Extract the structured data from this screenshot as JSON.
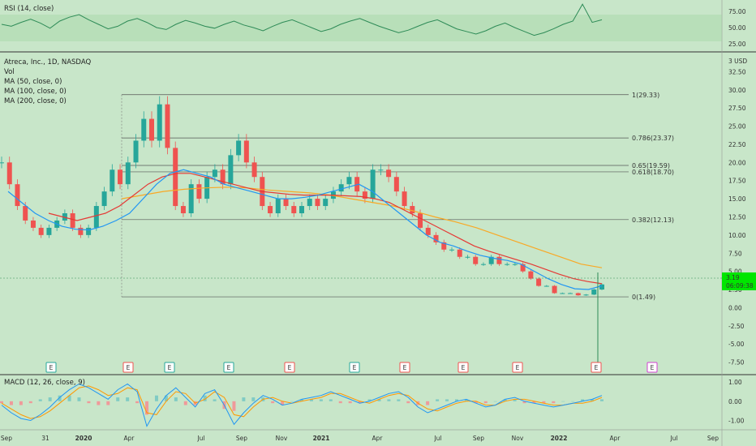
{
  "header": {
    "rsi_label": "RSI (14, close)",
    "main_title": "Atreca, Inc., 1D, NASDAQ",
    "indicators": [
      "Vol",
      "MA (50, close, 0)",
      "MA (100, close, 0)",
      "MA (200, close, 0)"
    ],
    "macd_label": "MACD (12, 26, close, 9)"
  },
  "colors": {
    "background": "#c8e6c9",
    "candle_up": "#26a69a",
    "candle_down": "#ef5350",
    "ma50": "#2196f3",
    "ma100": "#e53935",
    "ma200": "#f9a825",
    "rsi": "#2e8b57",
    "macd": "#2196f3",
    "signal": "#ff9800",
    "price_badge": "#00e600"
  },
  "price_badge": {
    "price": "3.19",
    "countdown": "06:09:38"
  },
  "chart_data": [
    {
      "type": "line",
      "name": "rsi",
      "title": "RSI (14, close)",
      "y_ticks": [
        "75.00",
        "50.00",
        "25.00"
      ],
      "ylim": [
        15,
        90
      ],
      "band": [
        30,
        70
      ],
      "values": [
        55,
        52,
        58,
        63,
        57,
        49,
        60,
        66,
        70,
        62,
        55,
        48,
        52,
        60,
        64,
        58,
        50,
        47,
        55,
        61,
        57,
        52,
        49,
        55,
        60,
        54,
        50,
        45,
        52,
        58,
        62,
        56,
        50,
        44,
        48,
        55,
        60,
        64,
        58,
        52,
        47,
        42,
        46,
        52,
        58,
        62,
        55,
        48,
        44,
        40,
        45,
        52,
        57,
        50,
        44,
        38,
        42,
        48,
        55,
        60,
        86,
        58,
        62
      ]
    },
    {
      "type": "candlestick",
      "name": "price",
      "title": "Atreca, Inc., 1D, NASDAQ",
      "y_ticks": [
        "32.50",
        "30.00",
        "27.50",
        "25.00",
        "22.50",
        "20.00",
        "17.50",
        "15.00",
        "12.50",
        "10.00",
        "7.50",
        "5.00",
        "2.50",
        "0.00",
        "-2.50",
        "-5.00",
        "-7.50"
      ],
      "axis_unit": "USD",
      "axis_top_label": "3",
      "ylim": [
        -9,
        35
      ],
      "x_ticks": [
        "Sep",
        "31",
        "2020",
        "Apr",
        "Jul",
        "Sep",
        "Nov",
        "2021",
        "Apr",
        "Jul",
        "Sep",
        "Nov",
        "2022",
        "Apr",
        "Jul",
        "Sep"
      ],
      "closes": [
        20,
        17,
        14,
        12,
        11,
        10,
        11,
        12,
        13,
        11,
        10,
        11,
        14,
        16,
        19,
        17,
        20,
        23,
        26,
        23,
        28,
        22,
        14,
        13,
        17,
        15,
        18,
        19,
        17,
        21,
        23,
        20,
        18,
        14,
        13,
        15,
        14,
        13,
        14,
        15,
        14,
        15,
        16,
        17,
        18,
        16,
        15,
        19,
        19,
        18,
        16,
        14,
        13,
        11,
        10,
        9,
        8,
        8,
        7,
        7,
        6,
        6,
        7,
        6,
        6,
        6,
        5,
        4,
        3,
        3,
        2,
        2,
        2,
        1.7,
        1.8,
        2.5,
        3.2
      ],
      "ma50": [
        16,
        14.5,
        13,
        12,
        11.2,
        10.8,
        10.7,
        11.2,
        12,
        13,
        15,
        17,
        18.5,
        19,
        18.5,
        18,
        17,
        16.5,
        16,
        15.5,
        15,
        15,
        15.2,
        15.5,
        16,
        16.5,
        17,
        16,
        14.5,
        13,
        11.5,
        10,
        9,
        8.5,
        7.8,
        7.2,
        6.8,
        6.5,
        6,
        5,
        4,
        3.2,
        2.6,
        2.5,
        3
      ],
      "ma100": [
        13,
        12.5,
        12,
        12.5,
        13,
        14,
        15.5,
        17,
        18,
        18.5,
        18.5,
        18,
        17.5,
        17,
        16.5,
        16,
        15.8,
        15.6,
        15.5,
        15.5,
        15.5,
        15.4,
        15.3,
        15,
        14.5,
        13.5,
        12.5,
        11.5,
        10.5,
        9.5,
        8.5,
        7.8,
        7.2,
        6.6,
        6,
        5.3,
        4.6,
        4,
        3.6,
        3.3
      ],
      "ma200": [
        15,
        15.5,
        16,
        16.3,
        16.5,
        16.6,
        16.5,
        16.2,
        16,
        15.8,
        15.5,
        15,
        14.5,
        14,
        13.3,
        12.5,
        11.8,
        11,
        10,
        9,
        8,
        7,
        6,
        5.5
      ],
      "volume_spike_value": 3.19
    },
    {
      "type": "line",
      "name": "macd",
      "title": "MACD (12, 26, close, 9)",
      "y_ticks": [
        "1.00",
        "0.00",
        "-1.00"
      ],
      "ylim": [
        -1.4,
        1.3
      ],
      "macd": [
        -0.2,
        -0.6,
        -0.9,
        -1.0,
        -0.7,
        -0.3,
        0.2,
        0.6,
        0.9,
        0.7,
        0.4,
        0.1,
        0.6,
        0.9,
        0.5,
        -1.3,
        -0.4,
        0.3,
        0.7,
        0.2,
        -0.3,
        0.4,
        0.6,
        -0.2,
        -1.2,
        -0.6,
        -0.1,
        0.3,
        0.1,
        -0.2,
        -0.1,
        0.1,
        0.2,
        0.3,
        0.5,
        0.3,
        0.1,
        -0.1,
        0.0,
        0.2,
        0.4,
        0.5,
        0.2,
        -0.3,
        -0.6,
        -0.4,
        -0.2,
        0.0,
        0.1,
        -0.1,
        -0.3,
        -0.2,
        0.1,
        0.2,
        0.0,
        -0.1,
        -0.2,
        -0.3,
        -0.2,
        -0.1,
        0.0,
        0.1,
        0.3
      ],
      "signal": [
        -0.1,
        -0.4,
        -0.7,
        -0.9,
        -0.8,
        -0.5,
        -0.1,
        0.3,
        0.7,
        0.8,
        0.6,
        0.3,
        0.4,
        0.7,
        0.6,
        -0.6,
        -0.7,
        0.0,
        0.5,
        0.4,
        -0.1,
        0.1,
        0.5,
        0.2,
        -0.7,
        -0.8,
        -0.3,
        0.1,
        0.2,
        0.0,
        -0.1,
        0.0,
        0.1,
        0.2,
        0.4,
        0.4,
        0.2,
        0.0,
        -0.1,
        0.1,
        0.3,
        0.4,
        0.3,
        -0.1,
        -0.4,
        -0.5,
        -0.3,
        -0.1,
        0.0,
        0.0,
        -0.2,
        -0.2,
        0.0,
        0.1,
        0.1,
        0.0,
        -0.1,
        -0.2,
        -0.2,
        -0.1,
        -0.1,
        0.0,
        0.2
      ]
    }
  ],
  "fibonacci": [
    {
      "level": "1",
      "price": 29.33,
      "label": "1(29.33)"
    },
    {
      "level": "0.786",
      "price": 23.37,
      "label": "0.786(23.37)"
    },
    {
      "level": "0.65",
      "price": 19.59,
      "label": "0.65(19.59)"
    },
    {
      "level": "0.618",
      "price": 18.7,
      "label": "0.618(18.70)"
    },
    {
      "level": "0.382",
      "price": 12.13,
      "label": "0.382(12.13)"
    },
    {
      "level": "0",
      "price": 1.49,
      "label": "0(1.49)"
    }
  ],
  "earnings_markers": [
    {
      "label": "E",
      "kind": "beat"
    },
    {
      "label": "E",
      "kind": "miss"
    },
    {
      "label": "E",
      "kind": "beat"
    },
    {
      "label": "E",
      "kind": "beat"
    },
    {
      "label": "E",
      "kind": "miss"
    },
    {
      "label": "E",
      "kind": "beat"
    },
    {
      "label": "E",
      "kind": "miss"
    },
    {
      "label": "E",
      "kind": "miss"
    },
    {
      "label": "E",
      "kind": "miss"
    },
    {
      "label": "E",
      "kind": "miss"
    },
    {
      "label": "E",
      "kind": "upcoming"
    }
  ]
}
